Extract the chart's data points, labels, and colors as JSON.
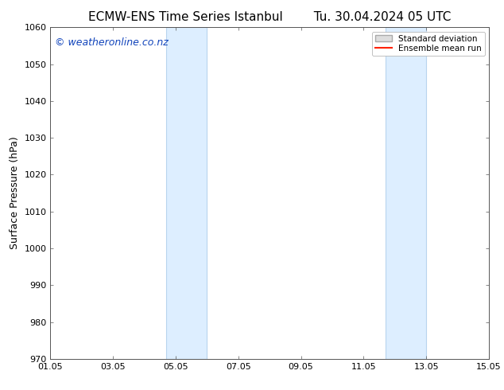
{
  "title_left": "ECMW-ENS Time Series Istanbul",
  "title_right": "Tu. 30.04.2024 05 UTC",
  "ylabel": "Surface Pressure (hPa)",
  "ylim": [
    970,
    1060
  ],
  "yticks": [
    970,
    980,
    990,
    1000,
    1010,
    1020,
    1030,
    1040,
    1050,
    1060
  ],
  "xtick_labels": [
    "01.05",
    "03.05",
    "05.05",
    "07.05",
    "09.05",
    "11.05",
    "13.05",
    "15.05"
  ],
  "xtick_positions": [
    0,
    2,
    4,
    6,
    8,
    10,
    12,
    14
  ],
  "xlim": [
    0,
    14
  ],
  "shade_regions": [
    {
      "x_start": 3.7,
      "x_end": 5.0
    },
    {
      "x_start": 10.7,
      "x_end": 12.0
    }
  ],
  "shade_color": "#ddeeff",
  "shade_edge_color": "#b8d4ee",
  "background_color": "#ffffff",
  "watermark_text": "© weatheronline.co.nz",
  "watermark_color": "#1144bb",
  "watermark_fontsize": 9,
  "legend_std_facecolor": "#dddddd",
  "legend_std_edgecolor": "#aaaaaa",
  "legend_mean_color": "#ff2200",
  "grid_color": "#cccccc",
  "title_fontsize": 11,
  "ylabel_fontsize": 9,
  "tick_fontsize": 8,
  "spine_color": "#555555"
}
